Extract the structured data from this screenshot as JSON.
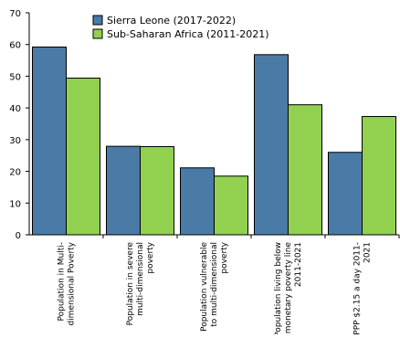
{
  "chart_data": {
    "type": "bar",
    "categories": [
      [
        "Population in Multi-",
        "dimensional Poverty"
      ],
      [
        "Population in severe",
        "multi-dimensional",
        "poverty"
      ],
      [
        "Population vulnerable",
        "to multi-dimensional",
        "poverty"
      ],
      [
        "Population living below",
        "monetary poverty line",
        "2011-2021"
      ],
      [
        "PPP $2.15 a day 2011-",
        "2021"
      ]
    ],
    "series": [
      {
        "name": "Sierra Leone (2017-2022)",
        "color": "#4a7ba7",
        "values": [
          59.2,
          27.9,
          21.1,
          56.8,
          26.0
        ]
      },
      {
        "name": "Sub-Saharan Africa (2011-2021)",
        "color": "#92d050",
        "values": [
          49.4,
          27.8,
          18.5,
          41.0,
          37.3
        ]
      }
    ],
    "ylim": [
      0,
      70
    ],
    "yticks": [
      0,
      10,
      20,
      30,
      40,
      50,
      60,
      70
    ],
    "grid": false,
    "legend_position": "top-center"
  }
}
